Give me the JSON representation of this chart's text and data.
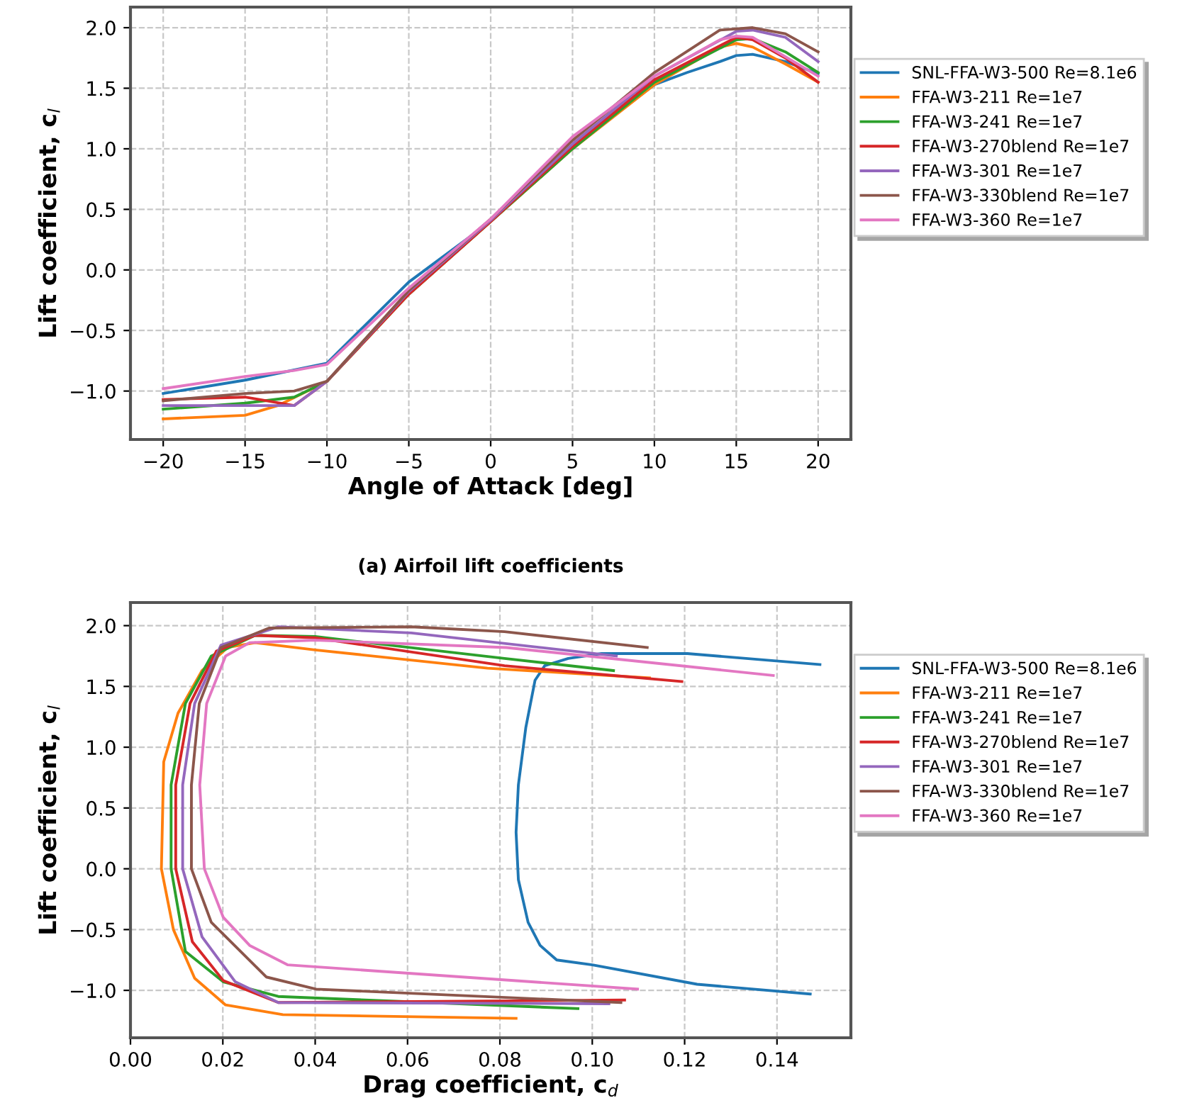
{
  "chart_data": [
    {
      "type": "line",
      "xlabel": "Angle of Attack [deg]",
      "ylabel": "Lift coefficient, c$_{l}$",
      "annotations": [
        "(a) Airfoil lift coefficients"
      ],
      "xlim": [
        -22,
        22
      ],
      "ylim": [
        -1.4,
        2.17
      ],
      "xticks": [
        {
          "value": -20,
          "label": "−20"
        },
        {
          "value": -15,
          "label": "−15"
        },
        {
          "value": -10,
          "label": "−10"
        },
        {
          "value": -5,
          "label": "−5"
        },
        0,
        5,
        10,
        15,
        20
      ],
      "yticks": [
        {
          "value": -1.0,
          "label": "−1.0"
        },
        {
          "value": -0.5,
          "label": "−0.5"
        },
        {
          "value": 0.0,
          "label": "0.0"
        },
        {
          "value": 0.5,
          "label": "0.5"
        },
        {
          "value": 1.0,
          "label": "1.0"
        },
        {
          "value": 1.5,
          "label": "1.5"
        },
        {
          "value": 2.0,
          "label": "2.0"
        }
      ],
      "grid": true,
      "legend": "right",
      "line_style": "solid",
      "series": [
        {
          "name": "SNL-FFA-W3-500 Re=8.1e6",
          "color": "#1f77b4",
          "x": [
            -20,
            -15,
            -10,
            -5,
            0,
            5,
            10,
            12,
            14,
            15,
            16,
            18,
            20
          ],
          "values": [
            -1.02,
            -0.91,
            -0.77,
            -0.1,
            0.4,
            1.02,
            1.53,
            1.63,
            1.72,
            1.77,
            1.78,
            1.72,
            1.62
          ]
        },
        {
          "name": "FFA-W3-211 Re=1e7",
          "color": "#ff7f0e",
          "x": [
            -20,
            -15,
            -13,
            -10,
            -5,
            0,
            5,
            10,
            14,
            15,
            16,
            18,
            20
          ],
          "values": [
            -1.23,
            -1.2,
            -1.12,
            -0.92,
            -0.2,
            0.4,
            1.0,
            1.53,
            1.84,
            1.87,
            1.84,
            1.7,
            1.55
          ]
        },
        {
          "name": "FFA-W3-241 Re=1e7",
          "color": "#2ca02c",
          "x": [
            -20,
            -15,
            -12,
            -10,
            -5,
            0,
            5,
            10,
            15,
            16,
            18,
            20
          ],
          "values": [
            -1.15,
            -1.1,
            -1.05,
            -0.92,
            -0.2,
            0.4,
            1.0,
            1.55,
            1.9,
            1.91,
            1.8,
            1.63
          ]
        },
        {
          "name": "FFA-W3-270blend Re=1e7",
          "color": "#d62728",
          "x": [
            -20,
            -15,
            -12,
            -10,
            -5,
            0,
            5,
            10,
            15,
            16,
            18,
            20
          ],
          "values": [
            -1.07,
            -1.05,
            -1.12,
            -0.92,
            -0.2,
            0.4,
            1.02,
            1.57,
            1.92,
            1.9,
            1.75,
            1.55
          ]
        },
        {
          "name": "FFA-W3-301 Re=1e7",
          "color": "#9467bd",
          "x": [
            -20,
            -15,
            -12,
            -10,
            -5,
            0,
            5,
            10,
            15,
            16,
            18,
            20
          ],
          "values": [
            -1.12,
            -1.12,
            -1.12,
            -0.92,
            -0.18,
            0.41,
            1.04,
            1.6,
            1.97,
            1.98,
            1.92,
            1.72
          ]
        },
        {
          "name": "FFA-W3-330blend Re=1e7",
          "color": "#8c564b",
          "x": [
            -20,
            -15,
            -12,
            -10,
            -5,
            0,
            5,
            10,
            14,
            16,
            18,
            20
          ],
          "values": [
            -1.08,
            -1.02,
            -1.0,
            -0.92,
            -0.17,
            0.42,
            1.07,
            1.63,
            1.98,
            2.0,
            1.95,
            1.8
          ]
        },
        {
          "name": "FFA-W3-360 Re=1e7",
          "color": "#e377c2",
          "x": [
            -20,
            -15,
            -12,
            -10,
            -5,
            0,
            5,
            10,
            14,
            15,
            16,
            20
          ],
          "values": [
            -0.98,
            -0.88,
            -0.83,
            -0.78,
            -0.15,
            0.42,
            1.1,
            1.6,
            1.9,
            1.93,
            1.92,
            1.6
          ]
        }
      ]
    },
    {
      "type": "line",
      "xlabel": "Drag coefficient, c$_{d}$",
      "ylabel": "Lift coefficient, c$_{l}$",
      "xlim": [
        0,
        0.156
      ],
      "ylim": [
        -1.39,
        2.19
      ],
      "xticks": [
        {
          "value": 0.0,
          "label": "0.00"
        },
        {
          "value": 0.02,
          "label": "0.02"
        },
        {
          "value": 0.04,
          "label": "0.04"
        },
        {
          "value": 0.06,
          "label": "0.06"
        },
        {
          "value": 0.08,
          "label": "0.08"
        },
        {
          "value": 0.1,
          "label": "0.10"
        },
        {
          "value": 0.12,
          "label": "0.12"
        },
        {
          "value": 0.14,
          "label": "0.14"
        }
      ],
      "yticks": [
        {
          "value": -1.0,
          "label": "−1.0"
        },
        {
          "value": -0.5,
          "label": "−0.5"
        },
        {
          "value": 0.0,
          "label": "0.0"
        },
        {
          "value": 0.5,
          "label": "0.5"
        },
        {
          "value": 1.0,
          "label": "1.0"
        },
        {
          "value": 1.5,
          "label": "1.5"
        },
        {
          "value": 2.0,
          "label": "2.0"
        }
      ],
      "grid": true,
      "legend": "right",
      "line_style": "solid",
      "series": [
        {
          "name": "SNL-FFA-W3-500 Re=8.1e6",
          "color": "#1f77b4",
          "x": [
            0.1472,
            0.1227,
            0.1,
            0.0923,
            0.0887,
            0.0861,
            0.084,
            0.0835,
            0.084,
            0.0856,
            0.0876,
            0.0897,
            0.0948,
            0.102,
            0.1206,
            0.1493
          ],
          "values": [
            -1.03,
            -0.95,
            -0.79,
            -0.75,
            -0.63,
            -0.44,
            -0.09,
            0.3,
            0.69,
            1.16,
            1.55,
            1.67,
            1.73,
            1.77,
            1.77,
            1.68
          ]
        },
        {
          "name": "FFA-W3-211 Re=1e7",
          "color": "#ff7f0e",
          "x": [
            0.0835,
            0.033,
            0.0206,
            0.0139,
            0.0093,
            0.0067,
            0.0072,
            0.0103,
            0.0155,
            0.021,
            0.027,
            0.04,
            0.0773,
            0.1124
          ],
          "values": [
            -1.23,
            -1.2,
            -1.12,
            -0.9,
            -0.5,
            0.0,
            0.88,
            1.28,
            1.63,
            1.82,
            1.86,
            1.8,
            1.65,
            1.57
          ]
        },
        {
          "name": "FFA-W3-241 Re=1e7",
          "color": "#2ca02c",
          "x": [
            0.0969,
            0.032,
            0.0201,
            0.0119,
            0.0088,
            0.0088,
            0.0119,
            0.0175,
            0.027,
            0.04,
            0.081,
            0.1046
          ],
          "values": [
            -1.15,
            -1.05,
            -0.93,
            -0.68,
            0.0,
            0.69,
            1.36,
            1.75,
            1.92,
            1.91,
            1.73,
            1.63
          ]
        },
        {
          "name": "FFA-W3-270blend Re=1e7",
          "color": "#d62728",
          "x": [
            0.107,
            0.032,
            0.0201,
            0.0134,
            0.0098,
            0.0098,
            0.0129,
            0.0186,
            0.027,
            0.04,
            0.081,
            0.1194
          ],
          "values": [
            -1.08,
            -1.1,
            -0.92,
            -0.6,
            0.0,
            0.69,
            1.36,
            1.79,
            1.92,
            1.9,
            1.67,
            1.54
          ]
        },
        {
          "name": "FFA-W3-301 Re=1e7",
          "color": "#9467bd",
          "x": [
            0.1036,
            0.032,
            0.0227,
            0.0155,
            0.0113,
            0.0113,
            0.0139,
            0.0196,
            0.032,
            0.0608,
            0.1052
          ],
          "values": [
            -1.11,
            -1.1,
            -0.93,
            -0.56,
            0.0,
            0.69,
            1.36,
            1.84,
            1.99,
            1.94,
            1.75
          ]
        },
        {
          "name": "FFA-W3-330blend Re=1e7",
          "color": "#8c564b",
          "x": [
            0.1062,
            0.0402,
            0.0294,
            0.0175,
            0.0132,
            0.0132,
            0.0149,
            0.0196,
            0.03,
            0.0608,
            0.081,
            0.1119
          ],
          "values": [
            -1.1,
            -0.99,
            -0.89,
            -0.44,
            0.0,
            0.69,
            1.36,
            1.82,
            1.98,
            1.99,
            1.95,
            1.82
          ]
        },
        {
          "name": "FFA-W3-360 Re=1e7",
          "color": "#e377c2",
          "x": [
            0.1098,
            0.034,
            0.0258,
            0.0201,
            0.016,
            0.015,
            0.0165,
            0.0206,
            0.0258,
            0.04,
            0.0814,
            0.1392
          ],
          "values": [
            -0.99,
            -0.79,
            -0.63,
            -0.4,
            0.0,
            0.69,
            1.36,
            1.75,
            1.86,
            1.88,
            1.82,
            1.59
          ]
        }
      ]
    }
  ]
}
